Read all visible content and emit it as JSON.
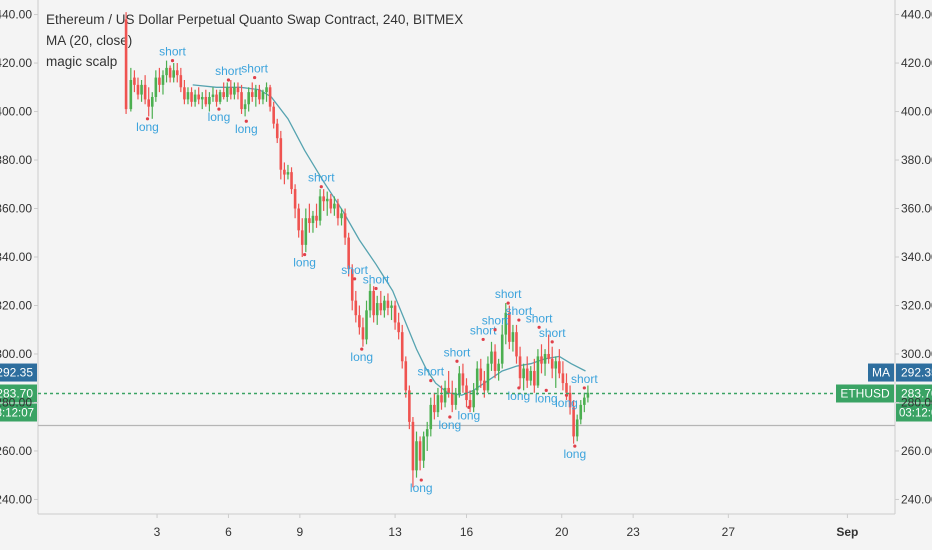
{
  "chart_data": {
    "type": "candlestick",
    "title": "Ethereum / US Dollar Perpetual Quanto Swap Contract, 240, BITMEX",
    "indicators": [
      "MA (20, close)",
      "magic scalp"
    ],
    "y_ticks": [
      240,
      260,
      280,
      300,
      320,
      340,
      360,
      380,
      400,
      420,
      440
    ],
    "y_tick_labels": [
      "240.00",
      "260.00",
      "280.00",
      "300.00",
      "320.00",
      "340.00",
      "360.00",
      "380.00",
      "400.00",
      "420.00",
      "440.00"
    ],
    "ylim": [
      234,
      446
    ],
    "x_tick_labels": [
      {
        "label": "3",
        "day": 3
      },
      {
        "label": "6",
        "day": 6
      },
      {
        "label": "9",
        "day": 9
      },
      {
        "label": "13",
        "day": 13
      },
      {
        "label": "16",
        "day": 16
      },
      {
        "label": "20",
        "day": 20
      },
      {
        "label": "23",
        "day": 23
      },
      {
        "label": "27",
        "day": 27
      },
      {
        "label": "Sep",
        "day": 32
      }
    ],
    "xlim": [
      -2,
      34
    ],
    "bar_interval_days": 0.1667,
    "candles": [
      {
        "t": 1.7,
        "o": 438,
        "h": 441,
        "l": 399,
        "c": 401
      },
      {
        "t": 1.9,
        "o": 401,
        "h": 418,
        "l": 400,
        "c": 413
      },
      {
        "t": 2.05,
        "o": 414,
        "h": 417,
        "l": 408,
        "c": 411
      },
      {
        "t": 2.2,
        "o": 411,
        "h": 414,
        "l": 405,
        "c": 407
      },
      {
        "t": 2.35,
        "o": 407,
        "h": 413,
        "l": 404,
        "c": 411
      },
      {
        "t": 2.5,
        "o": 411,
        "h": 415,
        "l": 403,
        "c": 405
      },
      {
        "t": 2.65,
        "o": 405,
        "h": 410,
        "l": 398,
        "c": 402
      },
      {
        "t": 2.8,
        "o": 402,
        "h": 408,
        "l": 397,
        "c": 406
      },
      {
        "t": 2.95,
        "o": 406,
        "h": 417,
        "l": 404,
        "c": 414
      },
      {
        "t": 3.1,
        "o": 414,
        "h": 418,
        "l": 408,
        "c": 411
      },
      {
        "t": 3.25,
        "o": 411,
        "h": 417,
        "l": 407,
        "c": 415
      },
      {
        "t": 3.4,
        "o": 415,
        "h": 421,
        "l": 412,
        "c": 418
      },
      {
        "t": 3.55,
        "o": 418,
        "h": 419,
        "l": 412,
        "c": 414
      },
      {
        "t": 3.7,
        "o": 414,
        "h": 420,
        "l": 412,
        "c": 417
      },
      {
        "t": 3.85,
        "o": 417,
        "h": 420,
        "l": 412,
        "c": 415
      },
      {
        "t": 4.0,
        "o": 415,
        "h": 418,
        "l": 408,
        "c": 410
      },
      {
        "t": 4.15,
        "o": 410,
        "h": 413,
        "l": 403,
        "c": 405
      },
      {
        "t": 4.3,
        "o": 405,
        "h": 410,
        "l": 403,
        "c": 408
      },
      {
        "t": 4.45,
        "o": 408,
        "h": 410,
        "l": 402,
        "c": 404
      },
      {
        "t": 4.6,
        "o": 404,
        "h": 409,
        "l": 402,
        "c": 407
      },
      {
        "t": 4.75,
        "o": 407,
        "h": 410,
        "l": 403,
        "c": 405
      },
      {
        "t": 4.9,
        "o": 405,
        "h": 408,
        "l": 401,
        "c": 406
      },
      {
        "t": 5.05,
        "o": 406,
        "h": 409,
        "l": 402,
        "c": 403
      },
      {
        "t": 5.2,
        "o": 403,
        "h": 408,
        "l": 400,
        "c": 406
      },
      {
        "t": 5.35,
        "o": 406,
        "h": 410,
        "l": 404,
        "c": 407
      },
      {
        "t": 5.5,
        "o": 407,
        "h": 409,
        "l": 402,
        "c": 404
      },
      {
        "t": 5.65,
        "o": 404,
        "h": 409,
        "l": 403,
        "c": 408
      },
      {
        "t": 5.8,
        "o": 408,
        "h": 412,
        "l": 405,
        "c": 406
      },
      {
        "t": 5.95,
        "o": 406,
        "h": 412,
        "l": 404,
        "c": 410
      },
      {
        "t": 6.1,
        "o": 410,
        "h": 413,
        "l": 405,
        "c": 407
      },
      {
        "t": 6.25,
        "o": 407,
        "h": 412,
        "l": 405,
        "c": 410
      },
      {
        "t": 6.4,
        "o": 410,
        "h": 412,
        "l": 405,
        "c": 408
      },
      {
        "t": 6.55,
        "o": 408,
        "h": 411,
        "l": 399,
        "c": 401
      },
      {
        "t": 6.7,
        "o": 401,
        "h": 405,
        "l": 398,
        "c": 403
      },
      {
        "t": 6.85,
        "o": 403,
        "h": 410,
        "l": 400,
        "c": 408
      },
      {
        "t": 7.0,
        "o": 408,
        "h": 412,
        "l": 404,
        "c": 406
      },
      {
        "t": 7.15,
        "o": 406,
        "h": 411,
        "l": 402,
        "c": 409
      },
      {
        "t": 7.3,
        "o": 409,
        "h": 411,
        "l": 403,
        "c": 405
      },
      {
        "t": 7.45,
        "o": 405,
        "h": 409,
        "l": 403,
        "c": 408
      },
      {
        "t": 7.6,
        "o": 408,
        "h": 412,
        "l": 404,
        "c": 410
      },
      {
        "t": 7.75,
        "o": 410,
        "h": 411,
        "l": 400,
        "c": 402
      },
      {
        "t": 7.9,
        "o": 402,
        "h": 404,
        "l": 393,
        "c": 395
      },
      {
        "t": 8.05,
        "o": 395,
        "h": 397,
        "l": 387,
        "c": 389
      },
      {
        "t": 8.2,
        "o": 389,
        "h": 392,
        "l": 372,
        "c": 376
      },
      {
        "t": 8.35,
        "o": 376,
        "h": 379,
        "l": 370,
        "c": 374
      },
      {
        "t": 8.5,
        "o": 374,
        "h": 378,
        "l": 372,
        "c": 375
      },
      {
        "t": 8.65,
        "o": 375,
        "h": 377,
        "l": 366,
        "c": 368
      },
      {
        "t": 8.8,
        "o": 368,
        "h": 370,
        "l": 356,
        "c": 360
      },
      {
        "t": 8.95,
        "o": 360,
        "h": 362,
        "l": 348,
        "c": 351
      },
      {
        "t": 9.1,
        "o": 351,
        "h": 356,
        "l": 340,
        "c": 345
      },
      {
        "t": 9.25,
        "o": 345,
        "h": 360,
        "l": 342,
        "c": 356
      },
      {
        "t": 9.4,
        "o": 356,
        "h": 362,
        "l": 350,
        "c": 354
      },
      {
        "t": 9.55,
        "o": 354,
        "h": 359,
        "l": 350,
        "c": 357
      },
      {
        "t": 9.7,
        "o": 357,
        "h": 362,
        "l": 352,
        "c": 355
      },
      {
        "t": 9.85,
        "o": 355,
        "h": 368,
        "l": 353,
        "c": 365
      },
      {
        "t": 10.0,
        "o": 365,
        "h": 368,
        "l": 359,
        "c": 363
      },
      {
        "t": 10.15,
        "o": 363,
        "h": 367,
        "l": 357,
        "c": 364
      },
      {
        "t": 10.3,
        "o": 364,
        "h": 366,
        "l": 358,
        "c": 360
      },
      {
        "t": 10.45,
        "o": 360,
        "h": 365,
        "l": 357,
        "c": 362
      },
      {
        "t": 10.6,
        "o": 362,
        "h": 364,
        "l": 353,
        "c": 356
      },
      {
        "t": 10.75,
        "o": 356,
        "h": 360,
        "l": 353,
        "c": 358
      },
      {
        "t": 10.9,
        "o": 358,
        "h": 360,
        "l": 345,
        "c": 348
      },
      {
        "t": 11.05,
        "o": 348,
        "h": 350,
        "l": 332,
        "c": 335
      },
      {
        "t": 11.2,
        "o": 335,
        "h": 337,
        "l": 318,
        "c": 322
      },
      {
        "t": 11.35,
        "o": 322,
        "h": 326,
        "l": 313,
        "c": 316
      },
      {
        "t": 11.5,
        "o": 316,
        "h": 320,
        "l": 308,
        "c": 311
      },
      {
        "t": 11.65,
        "o": 311,
        "h": 315,
        "l": 303,
        "c": 306
      },
      {
        "t": 11.8,
        "o": 306,
        "h": 322,
        "l": 304,
        "c": 318
      },
      {
        "t": 11.95,
        "o": 318,
        "h": 329,
        "l": 315,
        "c": 326
      },
      {
        "t": 12.1,
        "o": 326,
        "h": 328,
        "l": 313,
        "c": 316
      },
      {
        "t": 12.25,
        "o": 316,
        "h": 324,
        "l": 312,
        "c": 321
      },
      {
        "t": 12.4,
        "o": 321,
        "h": 326,
        "l": 316,
        "c": 318
      },
      {
        "t": 12.55,
        "o": 318,
        "h": 324,
        "l": 315,
        "c": 322
      },
      {
        "t": 12.7,
        "o": 322,
        "h": 325,
        "l": 316,
        "c": 319
      },
      {
        "t": 12.85,
        "o": 319,
        "h": 322,
        "l": 314,
        "c": 320
      },
      {
        "t": 13.0,
        "o": 320,
        "h": 322,
        "l": 310,
        "c": 313
      },
      {
        "t": 13.15,
        "o": 313,
        "h": 317,
        "l": 306,
        "c": 309
      },
      {
        "t": 13.3,
        "o": 309,
        "h": 312,
        "l": 294,
        "c": 297
      },
      {
        "t": 13.45,
        "o": 297,
        "h": 299,
        "l": 282,
        "c": 285
      },
      {
        "t": 13.6,
        "o": 285,
        "h": 287,
        "l": 269,
        "c": 272
      },
      {
        "t": 13.75,
        "o": 272,
        "h": 274,
        "l": 245,
        "c": 252
      },
      {
        "t": 13.9,
        "o": 252,
        "h": 268,
        "l": 249,
        "c": 264
      },
      {
        "t": 14.05,
        "o": 264,
        "h": 266,
        "l": 252,
        "c": 256
      },
      {
        "t": 14.2,
        "o": 256,
        "h": 268,
        "l": 253,
        "c": 266
      },
      {
        "t": 14.35,
        "o": 266,
        "h": 272,
        "l": 260,
        "c": 269
      },
      {
        "t": 14.5,
        "o": 269,
        "h": 282,
        "l": 266,
        "c": 279
      },
      {
        "t": 14.65,
        "o": 279,
        "h": 284,
        "l": 273,
        "c": 276
      },
      {
        "t": 14.8,
        "o": 276,
        "h": 286,
        "l": 274,
        "c": 283
      },
      {
        "t": 14.95,
        "o": 283,
        "h": 287,
        "l": 277,
        "c": 280
      },
      {
        "t": 15.1,
        "o": 280,
        "h": 289,
        "l": 278,
        "c": 286
      },
      {
        "t": 15.25,
        "o": 286,
        "h": 293,
        "l": 282,
        "c": 284
      },
      {
        "t": 15.4,
        "o": 284,
        "h": 289,
        "l": 276,
        "c": 279
      },
      {
        "t": 15.55,
        "o": 279,
        "h": 286,
        "l": 277,
        "c": 284
      },
      {
        "t": 15.7,
        "o": 284,
        "h": 295,
        "l": 282,
        "c": 292
      },
      {
        "t": 15.85,
        "o": 292,
        "h": 296,
        "l": 284,
        "c": 287
      },
      {
        "t": 16.0,
        "o": 287,
        "h": 290,
        "l": 278,
        "c": 281
      },
      {
        "t": 16.15,
        "o": 281,
        "h": 285,
        "l": 276,
        "c": 278
      },
      {
        "t": 16.3,
        "o": 278,
        "h": 288,
        "l": 276,
        "c": 285
      },
      {
        "t": 16.45,
        "o": 285,
        "h": 297,
        "l": 283,
        "c": 294
      },
      {
        "t": 16.6,
        "o": 294,
        "h": 298,
        "l": 286,
        "c": 289
      },
      {
        "t": 16.75,
        "o": 289,
        "h": 293,
        "l": 282,
        "c": 285
      },
      {
        "t": 16.9,
        "o": 285,
        "h": 299,
        "l": 284,
        "c": 296
      },
      {
        "t": 17.05,
        "o": 296,
        "h": 305,
        "l": 293,
        "c": 301
      },
      {
        "t": 17.2,
        "o": 301,
        "h": 304,
        "l": 290,
        "c": 293
      },
      {
        "t": 17.35,
        "o": 293,
        "h": 298,
        "l": 289,
        "c": 296
      },
      {
        "t": 17.5,
        "o": 296,
        "h": 312,
        "l": 294,
        "c": 308
      },
      {
        "t": 17.65,
        "o": 308,
        "h": 321,
        "l": 304,
        "c": 317
      },
      {
        "t": 17.8,
        "o": 317,
        "h": 320,
        "l": 302,
        "c": 305
      },
      {
        "t": 17.95,
        "o": 305,
        "h": 312,
        "l": 301,
        "c": 309
      },
      {
        "t": 18.1,
        "o": 309,
        "h": 312,
        "l": 296,
        "c": 299
      },
      {
        "t": 18.25,
        "o": 299,
        "h": 303,
        "l": 286,
        "c": 290
      },
      {
        "t": 18.4,
        "o": 290,
        "h": 296,
        "l": 285,
        "c": 294
      },
      {
        "t": 18.55,
        "o": 294,
        "h": 299,
        "l": 286,
        "c": 289
      },
      {
        "t": 18.7,
        "o": 289,
        "h": 295,
        "l": 287,
        "c": 293
      },
      {
        "t": 18.85,
        "o": 293,
        "h": 298,
        "l": 284,
        "c": 287
      },
      {
        "t": 19.0,
        "o": 287,
        "h": 302,
        "l": 286,
        "c": 299
      },
      {
        "t": 19.15,
        "o": 299,
        "h": 304,
        "l": 292,
        "c": 296
      },
      {
        "t": 19.3,
        "o": 296,
        "h": 302,
        "l": 291,
        "c": 300
      },
      {
        "t": 19.45,
        "o": 300,
        "h": 308,
        "l": 296,
        "c": 298
      },
      {
        "t": 19.6,
        "o": 298,
        "h": 303,
        "l": 290,
        "c": 294
      },
      {
        "t": 19.75,
        "o": 294,
        "h": 299,
        "l": 286,
        "c": 297
      },
      {
        "t": 19.9,
        "o": 297,
        "h": 302,
        "l": 290,
        "c": 292
      },
      {
        "t": 20.05,
        "o": 292,
        "h": 297,
        "l": 285,
        "c": 288
      },
      {
        "t": 20.2,
        "o": 288,
        "h": 292,
        "l": 281,
        "c": 284
      },
      {
        "t": 20.35,
        "o": 284,
        "h": 287,
        "l": 275,
        "c": 278
      },
      {
        "t": 20.5,
        "o": 278,
        "h": 281,
        "l": 263,
        "c": 266
      },
      {
        "t": 20.65,
        "o": 266,
        "h": 275,
        "l": 264,
        "c": 273
      },
      {
        "t": 20.8,
        "o": 273,
        "h": 281,
        "l": 271,
        "c": 279
      },
      {
        "t": 20.95,
        "o": 279,
        "h": 284,
        "l": 276,
        "c": 282
      },
      {
        "t": 21.1,
        "o": 282,
        "h": 287,
        "l": 280,
        "c": 284
      }
    ],
    "ma": {
      "name": "MA (20, close)",
      "points": [
        [
          4.5,
          411
        ],
        [
          5.5,
          410
        ],
        [
          6.5,
          410
        ],
        [
          7.3,
          409
        ],
        [
          7.8,
          406
        ],
        [
          8.5,
          397
        ],
        [
          9.2,
          384
        ],
        [
          10.0,
          371
        ],
        [
          10.8,
          359
        ],
        [
          11.5,
          347
        ],
        [
          12.2,
          337
        ],
        [
          12.9,
          326
        ],
        [
          13.4,
          314
        ],
        [
          13.9,
          302
        ],
        [
          14.3,
          294
        ],
        [
          14.7,
          288
        ],
        [
          15.2,
          284
        ],
        [
          15.8,
          283
        ],
        [
          16.3,
          285
        ],
        [
          16.9,
          289
        ],
        [
          17.5,
          293
        ],
        [
          18.1,
          295
        ],
        [
          18.7,
          296
        ],
        [
          19.3,
          298
        ],
        [
          19.9,
          299
        ],
        [
          20.4,
          296
        ],
        [
          21.0,
          293
        ]
      ]
    },
    "signals": [
      {
        "label": "short",
        "t": 3.65,
        "y": 421
      },
      {
        "label": "long",
        "t": 2.6,
        "y": 397
      },
      {
        "label": "short",
        "t": 6.0,
        "y": 413
      },
      {
        "label": "short",
        "t": 7.1,
        "y": 414
      },
      {
        "label": "long",
        "t": 5.6,
        "y": 401
      },
      {
        "label": "long",
        "t": 6.75,
        "y": 396
      },
      {
        "label": "short",
        "t": 9.9,
        "y": 369
      },
      {
        "label": "long",
        "t": 9.2,
        "y": 341
      },
      {
        "label": "short",
        "t": 11.3,
        "y": 331
      },
      {
        "label": "short",
        "t": 12.2,
        "y": 327
      },
      {
        "label": "long",
        "t": 11.6,
        "y": 302
      },
      {
        "label": "short",
        "t": 14.5,
        "y": 289
      },
      {
        "label": "short",
        "t": 15.6,
        "y": 297
      },
      {
        "label": "short",
        "t": 16.7,
        "y": 306
      },
      {
        "label": "short",
        "t": 17.2,
        "y": 310
      },
      {
        "label": "short",
        "t": 17.75,
        "y": 321
      },
      {
        "label": "short",
        "t": 18.2,
        "y": 314
      },
      {
        "label": "short",
        "t": 19.05,
        "y": 311
      },
      {
        "label": "short",
        "t": 19.6,
        "y": 305
      },
      {
        "label": "short",
        "t": 20.95,
        "y": 286
      },
      {
        "label": "long",
        "t": 14.1,
        "y": 248
      },
      {
        "label": "long",
        "t": 15.3,
        "y": 274
      },
      {
        "label": "long",
        "t": 16.1,
        "y": 278
      },
      {
        "label": "long",
        "t": 18.2,
        "y": 286
      },
      {
        "label": "long",
        "t": 19.35,
        "y": 285
      },
      {
        "label": "long",
        "t": 20.2,
        "y": 283
      },
      {
        "label": "long",
        "t": 20.55,
        "y": 262
      }
    ],
    "price_lines": [
      {
        "name": "MA",
        "value": 292.35,
        "label": "292.35",
        "tag": "MA",
        "color": "#2e6e9e"
      },
      {
        "name": "ETHUSD",
        "value": 283.7,
        "label": "283.70",
        "tag": "ETHUSD",
        "color": "#3aa364"
      }
    ],
    "gray_line_value": 270.5,
    "countdown": "03:12:07",
    "colors": {
      "up": "#4caf50",
      "down": "#ef5350",
      "ma": "#56a3b0",
      "signal_text": "#3ca3dc",
      "signal_dot": "#e0404a",
      "grid_axis": "#cccccc",
      "text": "#333333",
      "background": "#f4f4f4"
    }
  }
}
